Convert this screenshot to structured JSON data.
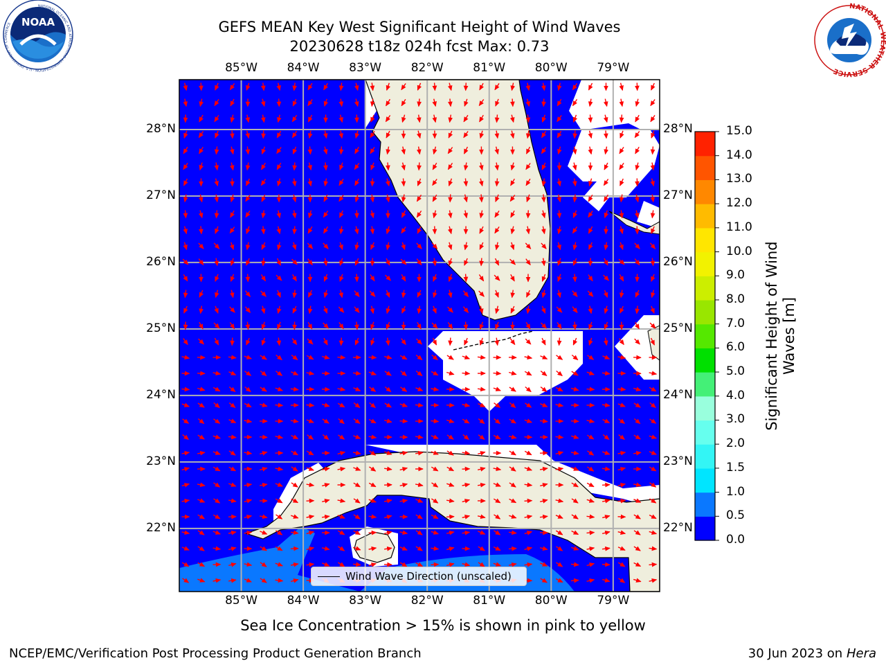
{
  "title": {
    "line1": "GEFS MEAN Key West Significant Height of Wind Waves",
    "line2": "20230628 t18z 024h fcst   Max: 0.73"
  },
  "map": {
    "lon_range": [
      -86.0,
      -78.25
    ],
    "lat_range": [
      21.05,
      28.75
    ],
    "lon_ticks": [
      "85°W",
      "84°W",
      "83°W",
      "82°W",
      "81°W",
      "80°W",
      "79°W"
    ],
    "lat_ticks": [
      "22°N",
      "23°N",
      "24°N",
      "25°N",
      "26°N",
      "27°N",
      "28°N"
    ],
    "gridlines": true,
    "ocean_color": "#0000ff",
    "land_color": "#efeedd",
    "arrow_color": "#ff0000"
  },
  "legend": {
    "label": "Wind Wave Direction (unscaled)",
    "placement": "lower-center"
  },
  "colorbar": {
    "label_line1": "Significant Height of Wind",
    "label_line2": "Waves [m]",
    "ticks": [
      "0.0",
      "0.5",
      "1.0",
      "1.5",
      "2.0",
      "3.0",
      "4.0",
      "5.0",
      "6.0",
      "7.0",
      "8.0",
      "9.0",
      "10.0",
      "11.0",
      "12.0",
      "13.0",
      "14.0",
      "15.0"
    ],
    "colors": [
      "#0000ff",
      "#0a78ff",
      "#00e5ff",
      "#33f5f5",
      "#66ffee",
      "#99ffdd",
      "#44f077",
      "#00e000",
      "#55e800",
      "#99e600",
      "#ccee00",
      "#f2f200",
      "#ffe600",
      "#ffbb00",
      "#ff8800",
      "#ff5500",
      "#ff2200"
    ]
  },
  "chart_data": {
    "type": "heatmap",
    "title": "GEFS MEAN Key West Significant Height of Wind Waves",
    "subtitle": "20230628 t18z 024h fcst   Max: 0.73",
    "variable": "Significant Height of Wind Waves [m]",
    "max_value": 0.73,
    "value_range": [
      0.0,
      15.0
    ],
    "legend": [
      "Wind Wave Direction (unscaled)"
    ],
    "note": "Sea Ice Concentration > 15% is shown in pink to yellow"
  },
  "note": "Sea Ice Concentration > 15% is shown in pink to yellow",
  "footer": {
    "left": "NCEP/EMC/Verification Post Processing Product Generation Branch",
    "date": "30 Jun 2023",
    "on": "on",
    "machine": "Hera"
  },
  "logos": {
    "left": "NOAA",
    "left_ring": "NATIONAL OCEANIC AND ATMOSPHERIC ADMINISTRATION · U.S. DEPARTMENT OF COMMERCE",
    "right_ring": "NATIONAL WEATHER SERVICE"
  }
}
